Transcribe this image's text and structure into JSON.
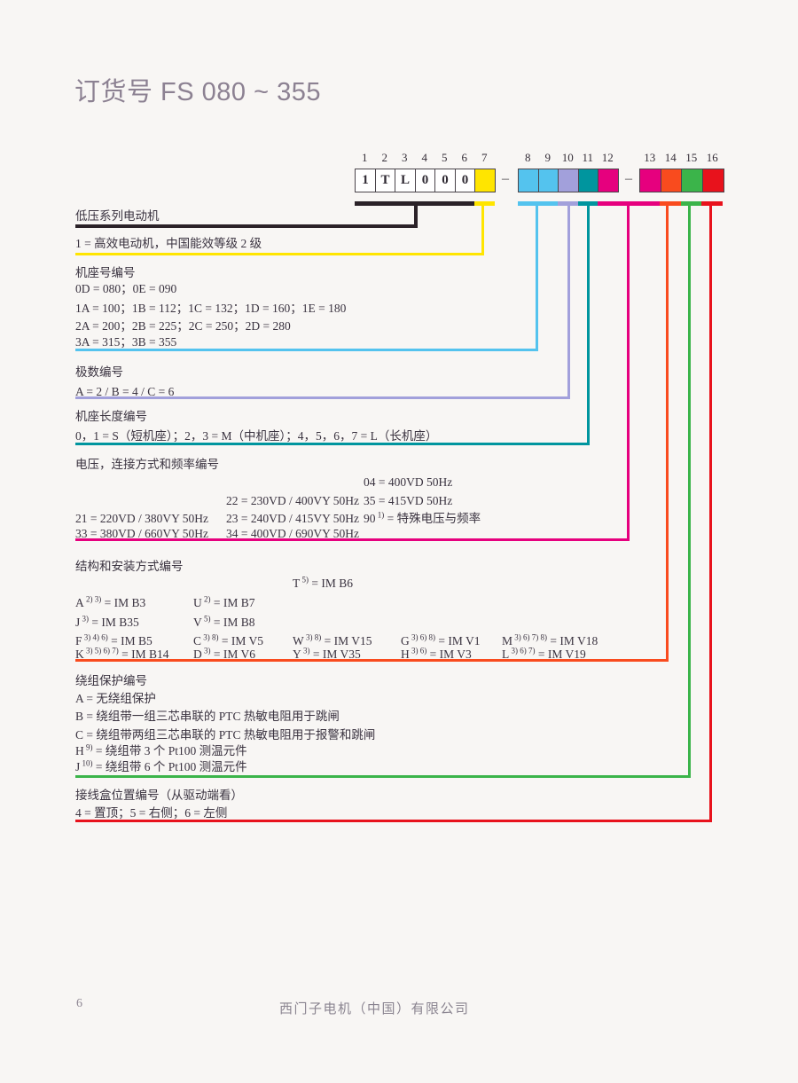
{
  "page": {
    "title": "订货号 FS 080 ~ 355",
    "page_number": "6",
    "footer_company": "西门子电机（中国）有限公司"
  },
  "diagram": {
    "dash": "–",
    "groups": [
      {
        "cells": [
          {
            "n": "1",
            "ch": "1",
            "bg": "#ffffff"
          },
          {
            "n": "2",
            "ch": "T",
            "bg": "#ffffff"
          },
          {
            "n": "3",
            "ch": "L",
            "bg": "#ffffff"
          },
          {
            "n": "4",
            "ch": "0",
            "bg": "#ffffff"
          },
          {
            "n": "5",
            "ch": "0",
            "bg": "#ffffff"
          },
          {
            "n": "6",
            "ch": "0",
            "bg": "#ffffff"
          },
          {
            "n": "7",
            "ch": "",
            "bg": "#FFE500"
          }
        ]
      },
      {
        "cells": [
          {
            "n": "8",
            "ch": "",
            "bg": "#54C3EE"
          },
          {
            "n": "9",
            "ch": "",
            "bg": "#54C3EE"
          },
          {
            "n": "10",
            "ch": "",
            "bg": "#A2A0DB"
          },
          {
            "n": "11",
            "ch": "",
            "bg": "#00959E"
          },
          {
            "n": "12",
            "ch": "",
            "bg": "#E6007E"
          }
        ]
      },
      {
        "cells": [
          {
            "n": "13",
            "ch": "",
            "bg": "#E6007E"
          },
          {
            "n": "14",
            "ch": "",
            "bg": "#F94B1E"
          },
          {
            "n": "15",
            "ch": "",
            "bg": "#3BB44A"
          },
          {
            "n": "16",
            "ch": "",
            "bg": "#E8121C"
          }
        ]
      }
    ]
  },
  "sections": {
    "series": {
      "color": "#2B2228",
      "heading": "低压系列电动机"
    },
    "efficiency": {
      "color": "#FFE500",
      "line": "1 = 高效电动机，中国能效等级 2 级"
    },
    "frame_size": {
      "color": "#54C3EE",
      "heading": "机座号编号",
      "lines": [
        "0D = 080；0E = 090",
        "1A = 100；1B = 112；1C = 132；1D = 160；1E = 180",
        "2A = 200；2B = 225；2C = 250；2D = 280",
        "3A = 315；3B = 355"
      ]
    },
    "poles": {
      "color": "#A2A0DB",
      "heading": "极数编号",
      "line": "A = 2 / B = 4 / C = 6"
    },
    "frame_length": {
      "color": "#00959E",
      "heading": "机座长度编号",
      "line": "0，1 = S（短机座）；2，3 = M（中机座）；4，5，6，7 = L（长机座）"
    },
    "voltage": {
      "color": "#E6007E",
      "heading": "电压，连接方式和频率编号",
      "rows": [
        [
          {
            "col": 3,
            "t": "04 = 400VD 50Hz"
          }
        ],
        [
          {
            "col": 2,
            "t": "22 = 230VD / 400VY 50Hz"
          },
          {
            "col": 3,
            "t": "35 = 415VD 50Hz"
          }
        ],
        [
          {
            "col": 1,
            "t": "21 = 220VD / 380VY 50Hz"
          },
          {
            "col": 2,
            "t": "23 = 240VD / 415VY 50Hz"
          },
          {
            "col": 3,
            "c": "90",
            "s": "1)",
            "v": "特殊电压与频率"
          }
        ],
        [
          {
            "col": 1,
            "t": "33 = 380VD / 660VY 50Hz"
          },
          {
            "col": 2,
            "t": "34 = 400VD / 690VY 50Hz"
          }
        ]
      ]
    },
    "mounting": {
      "color": "#F94B1E",
      "heading": "结构和安装方式编号",
      "rows": [
        [
          {
            "col": 3,
            "c": "T",
            "s": "5)",
            "v": "IM B6"
          }
        ],
        [
          {
            "col": 1,
            "c": "A",
            "s": "2) 3)",
            "v": "IM B3"
          },
          {
            "col": 2,
            "c": "U",
            "s": "2)",
            "v": "IM B7"
          }
        ],
        [
          {
            "col": 1,
            "c": "J",
            "s": "3)",
            "v": "IM B35"
          },
          {
            "col": 2,
            "c": "V",
            "s": "5)",
            "v": "IM B8"
          }
        ],
        [
          {
            "col": 1,
            "c": "F",
            "s": "3) 4) 6)",
            "v": "IM B5"
          },
          {
            "col": 2,
            "c": "C",
            "s": "3) 8)",
            "v": "IM V5"
          },
          {
            "col": 3,
            "c": "W",
            "s": "3) 8)",
            "v": "IM V15"
          },
          {
            "col": 4,
            "c": "G",
            "s": "3) 6) 8)",
            "v": "IM V1"
          },
          {
            "col": 5,
            "c": "M",
            "s": "3) 6) 7) 8)",
            "v": "IM V18"
          }
        ],
        [
          {
            "col": 1,
            "c": "K",
            "s": "3) 5) 6) 7)",
            "v": "IM B14"
          },
          {
            "col": 2,
            "c": "D",
            "s": "3)",
            "v": "IM V6"
          },
          {
            "col": 3,
            "c": "Y",
            "s": "3)",
            "v": "IM V35"
          },
          {
            "col": 4,
            "c": "H",
            "s": "3) 6)",
            "v": "IM V3"
          },
          {
            "col": 5,
            "c": "L",
            "s": "3) 6) 7)",
            "v": "IM V19"
          }
        ]
      ]
    },
    "winding": {
      "color": "#3BB44A",
      "heading": "绕组保护编号",
      "items": [
        {
          "c": "A",
          "s": "",
          "v": "无绕组保护"
        },
        {
          "c": "B",
          "s": "",
          "v": "绕组带一组三芯串联的 PTC 热敏电阻用于跳闸"
        },
        {
          "c": "C",
          "s": "",
          "v": "绕组带两组三芯串联的 PTC 热敏电阻用于报警和跳闸"
        },
        {
          "c": "H",
          "s": "9)",
          "v": "绕组带 3 个 Pt100 测温元件"
        },
        {
          "c": "J",
          "s": "10)",
          "v": "绕组带 6 个 Pt100 测温元件"
        }
      ]
    },
    "terminal": {
      "color": "#E8121C",
      "heading": "接线盒位置编号（从驱动端看）",
      "line": "4 = 置顶；5 = 右侧；6 = 左侧"
    }
  }
}
